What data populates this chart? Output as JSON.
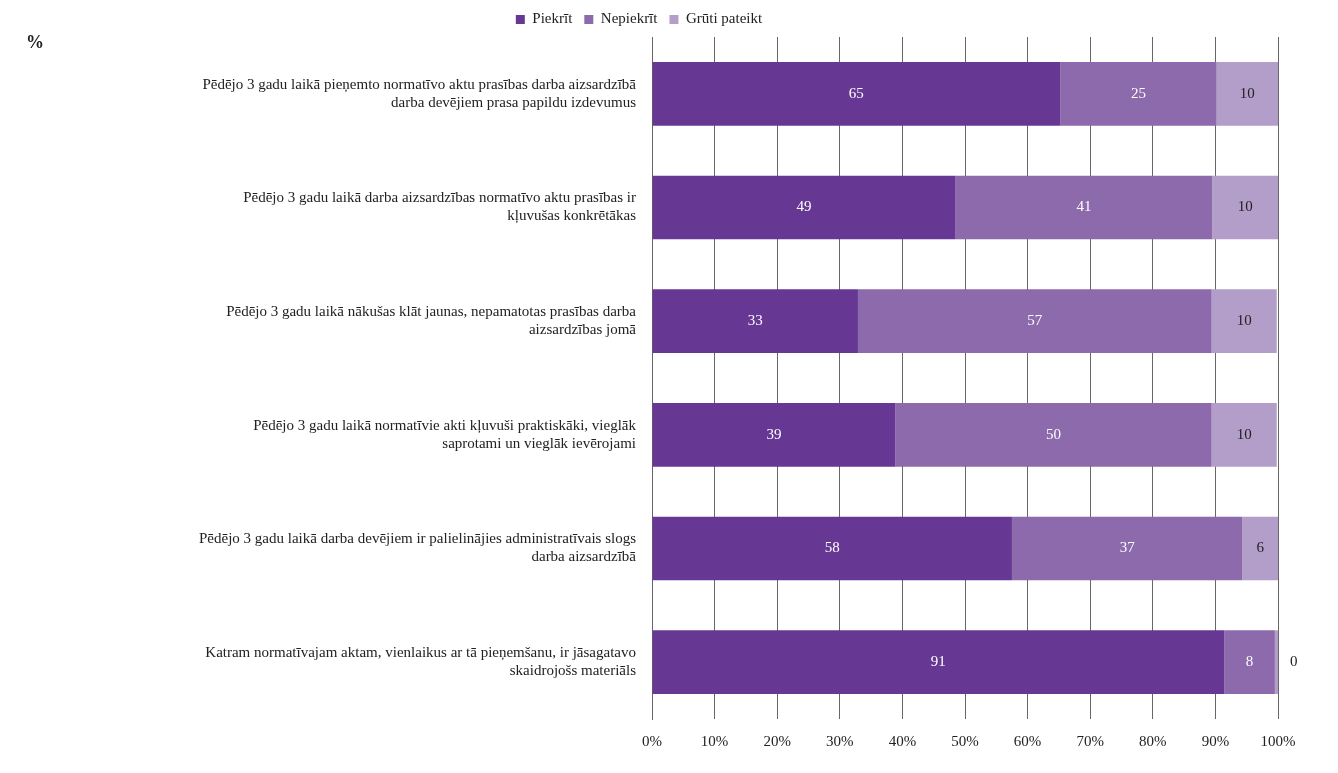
{
  "chart_data": {
    "type": "bar",
    "orientation": "horizontal",
    "stacked": true,
    "title": "%",
    "categories": [
      "Pēdējo 3 gadu laikā pieņemto normatīvo aktu prasības darba aizsardzībā darba devējiem prasa papildu izdevumus",
      "Pēdējo 3 gadu laikā darba aizsardzības normatīvo aktu prasības ir kļuvušas konkrētākas",
      "Pēdējo 3 gadu laikā nākušas klāt jaunas, nepamatotas prasības darba aizsardzības jomā",
      "Pēdējo 3 gadu laikā normatīvie akti kļuvuši praktiskāki, vieglāk saprotami un vieglāk ievērojami",
      "Pēdējo 3 gadu laikā darba devējiem ir palielinājies administratīvais slogs darba aizsardzībā",
      "Katram normatīvajam aktam, vienlaikus ar tā pieņemšanu, ir jāsagatavo skaidrojošs materiāls"
    ],
    "series": [
      {
        "name": "Piekrīt",
        "color": "#663893",
        "values": [
          65.2,
          48.5,
          32.9,
          38.9,
          57.5,
          91.4
        ],
        "value_labels": [
          "65",
          "49",
          "33",
          "39",
          "58",
          "91"
        ]
      },
      {
        "name": "Nepiekrīt",
        "color": "#8c6aab",
        "values": [
          25,
          41,
          56.5,
          50.5,
          36.8,
          8.1
        ],
        "value_labels": [
          "25",
          "41",
          "57",
          "50",
          "37",
          "8"
        ]
      },
      {
        "name": "Grūti pateikt",
        "color": "#b39dc9",
        "values": [
          9.8,
          10.5,
          10.4,
          10.4,
          5.7,
          0.5
        ],
        "value_labels": [
          "10",
          "10",
          "10",
          "10",
          "6",
          "0"
        ]
      }
    ],
    "xlim": [
      0,
      100
    ],
    "xticks": [
      {
        "value": 0,
        "label": "0%"
      },
      {
        "value": 10,
        "label": "10%"
      },
      {
        "value": 20,
        "label": "20%"
      },
      {
        "value": 30,
        "label": "30%"
      },
      {
        "value": 40,
        "label": "40%"
      },
      {
        "value": 50,
        "label": "50%"
      },
      {
        "value": 60,
        "label": "60%"
      },
      {
        "value": 70,
        "label": "70%"
      },
      {
        "value": 80,
        "label": "80%"
      },
      {
        "value": 90,
        "label": "90%"
      },
      {
        "value": 100,
        "label": "100%"
      }
    ],
    "grid": "x",
    "legend": "top"
  }
}
